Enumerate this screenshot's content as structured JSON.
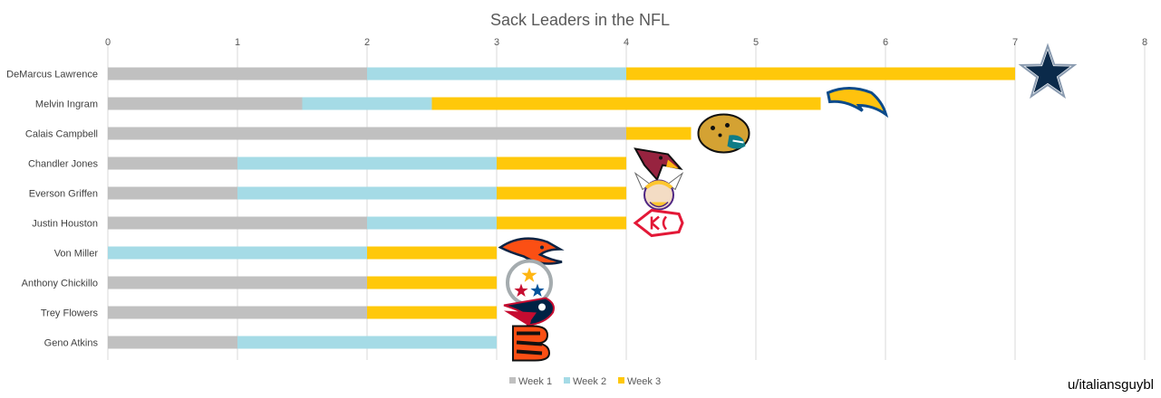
{
  "chart_data": {
    "type": "bar",
    "orientation": "horizontal",
    "stacked": true,
    "title": "Sack Leaders in the NFL",
    "xlim": [
      0,
      8
    ],
    "xticks": [
      "0",
      "1",
      "2",
      "3",
      "4",
      "5",
      "6",
      "7",
      "8"
    ],
    "grid": true,
    "legend_position": "bottom",
    "categories": [
      "DeMarcus Lawrence",
      "Melvin Ingram",
      "Calais Campbell",
      "Chandler Jones",
      "Everson Griffen",
      "Justin Houston",
      "Von Miller",
      "Anthony Chickillo",
      "Trey Flowers",
      "Geno Atkins"
    ],
    "series": [
      {
        "name": "Week 1",
        "color": "#c0c0c0",
        "values": [
          2,
          1.5,
          4,
          1,
          1,
          2,
          0,
          2,
          2,
          1
        ]
      },
      {
        "name": "Week 2",
        "color": "#a5dbe6",
        "values": [
          2,
          1,
          0,
          2,
          2,
          1,
          2,
          0,
          0,
          2
        ]
      },
      {
        "name": "Week 3",
        "color": "#ffc80a",
        "values": [
          3,
          3,
          0.5,
          1,
          1,
          1,
          1,
          1,
          1,
          0
        ]
      }
    ],
    "team_logos": [
      "cowboys-star-icon",
      "chargers-bolt-icon",
      "jaguars-icon",
      "cardinals-icon",
      "vikings-icon",
      "chiefs-icon",
      "broncos-icon",
      "steelers-icon",
      "patriots-icon",
      "bengals-icon"
    ]
  },
  "credit": "u/italiansguybl"
}
